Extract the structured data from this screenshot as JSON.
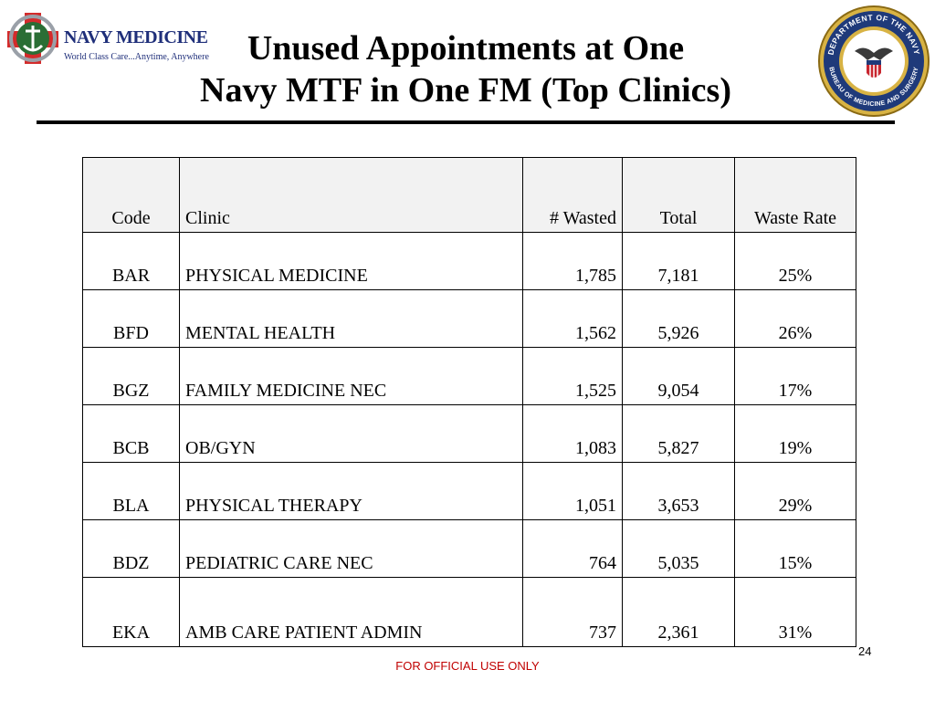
{
  "logo": {
    "main_text": "NAVY MEDICINE",
    "sub_text": "World Class Care...Anytime, Anywhere"
  },
  "seal": {
    "top_text": "DEPARTMENT OF THE NAVY",
    "bottom_text": "BUREAU OF MEDICINE AND SURGERY"
  },
  "title": {
    "line1": "Unused Appointments at One",
    "line2": "Navy MTF in  One FM (Top Clinics)"
  },
  "table": {
    "headers": {
      "code": "Code",
      "clinic": "Clinic",
      "wasted": "# Wasted",
      "total": "Total",
      "rate": "Waste Rate"
    },
    "rows": [
      {
        "code": "BAR",
        "clinic": "PHYSICAL MEDICINE",
        "wasted": "1,785",
        "total": "7,181",
        "rate": "25%"
      },
      {
        "code": "BFD",
        "clinic": "MENTAL HEALTH",
        "wasted": "1,562",
        "total": "5,926",
        "rate": "26%"
      },
      {
        "code": "BGZ",
        "clinic": "FAMILY MEDICINE NEC",
        "wasted": "1,525",
        "total": "9,054",
        "rate": "17%"
      },
      {
        "code": "BCB",
        "clinic": "OB/GYN",
        "wasted": "1,083",
        "total": "5,827",
        "rate": "19%"
      },
      {
        "code": "BLA",
        "clinic": "PHYSICAL THERAPY",
        "wasted": "1,051",
        "total": "3,653",
        "rate": "29%"
      },
      {
        "code": "BDZ",
        "clinic": "PEDIATRIC CARE NEC",
        "wasted": "764",
        "total": "5,035",
        "rate": "15%"
      },
      {
        "code": "EKA",
        "clinic": "AMB CARE PATIENT ADMIN",
        "wasted": "737",
        "total": "2,361",
        "rate": "31%"
      }
    ]
  },
  "page_number": "24",
  "footer": "FOR OFFICIAL USE ONLY"
}
